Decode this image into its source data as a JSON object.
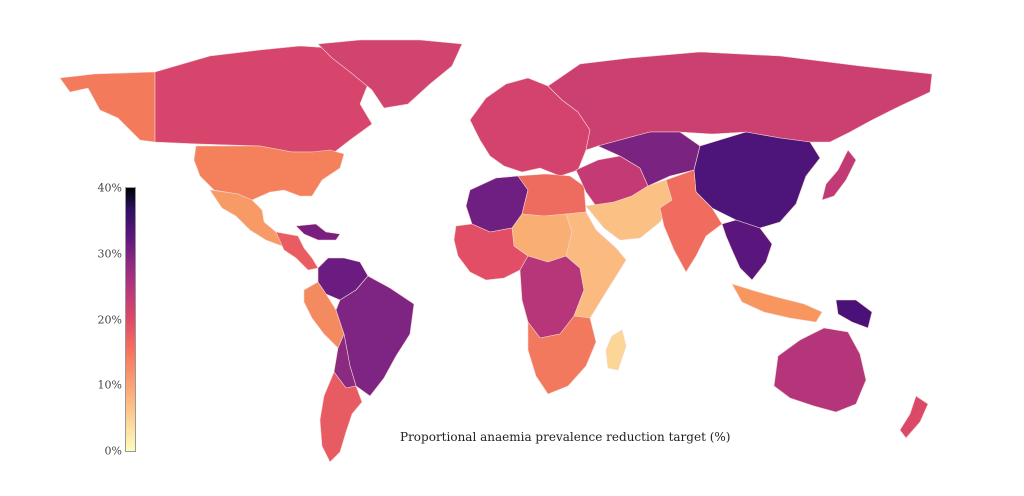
{
  "map": {
    "caption": "Proportional anaemia prevalence reduction target (%)",
    "legend": {
      "ticks": [
        "0%",
        "10%",
        "20%",
        "30%",
        "40%"
      ],
      "scale": "magma",
      "min_color": "#fcfdbf",
      "max_color": "#000004"
    },
    "regions": [
      {
        "name": "alaska",
        "color": "#f47a5c"
      },
      {
        "name": "canada",
        "color": "#d8456c"
      },
      {
        "name": "greenland",
        "color": "#d0446f"
      },
      {
        "name": "usa",
        "color": "#f4815c"
      },
      {
        "name": "mexico",
        "color": "#f79a65"
      },
      {
        "name": "central-america",
        "color": "#e85c62"
      },
      {
        "name": "caribbean",
        "color": "#7a1e80"
      },
      {
        "name": "colombia-venezuela",
        "color": "#6b1c81"
      },
      {
        "name": "peru",
        "color": "#f48a5f"
      },
      {
        "name": "brazil",
        "color": "#7e2482"
      },
      {
        "name": "bolivia-paraguay",
        "color": "#8a2a80"
      },
      {
        "name": "argentina-chile",
        "color": "#e75b63"
      },
      {
        "name": "europe",
        "color": "#d3436e"
      },
      {
        "name": "russia",
        "color": "#cc3f71"
      },
      {
        "name": "north-africa-west",
        "color": "#6f1f81"
      },
      {
        "name": "north-africa-east",
        "color": "#ee6b5f"
      },
      {
        "name": "sahel",
        "color": "#f9ae73"
      },
      {
        "name": "west-africa",
        "color": "#e14e66"
      },
      {
        "name": "central-africa",
        "color": "#b63679"
      },
      {
        "name": "east-africa",
        "color": "#fbbb80"
      },
      {
        "name": "southern-africa",
        "color": "#f2795d"
      },
      {
        "name": "madagascar",
        "color": "#fbd696"
      },
      {
        "name": "middle-east",
        "color": "#c43a74"
      },
      {
        "name": "arabia-south",
        "color": "#fbc184"
      },
      {
        "name": "central-asia",
        "color": "#7b2381"
      },
      {
        "name": "china-mongolia",
        "color": "#4d1479"
      },
      {
        "name": "india",
        "color": "#ef6c5e"
      },
      {
        "name": "southeast-asia",
        "color": "#5b167d"
      },
      {
        "name": "japan",
        "color": "#c13a76"
      },
      {
        "name": "indonesia",
        "color": "#f8965f"
      },
      {
        "name": "new-guinea",
        "color": "#4a1278"
      },
      {
        "name": "australia",
        "color": "#b4357a"
      },
      {
        "name": "new-zealand",
        "color": "#db4868"
      }
    ]
  }
}
